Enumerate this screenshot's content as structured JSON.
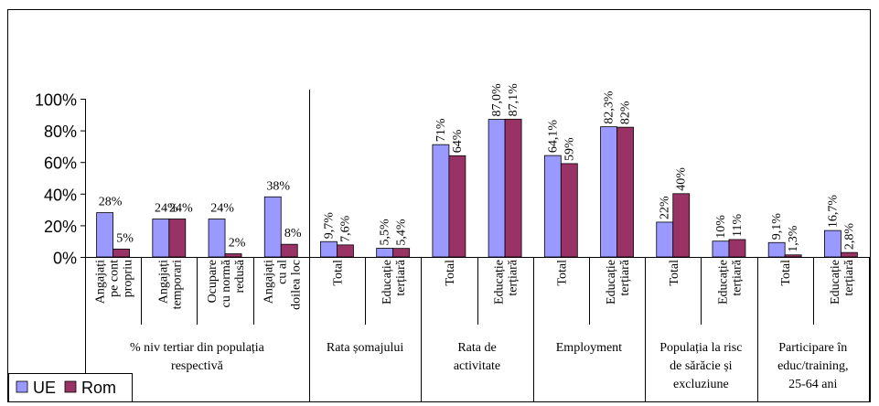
{
  "chart_data": {
    "type": "bar",
    "ylim": [
      0,
      100
    ],
    "y_ticks": [
      "0%",
      "20%",
      "40%",
      "60%",
      "80%",
      "100%"
    ],
    "y_tick_values": [
      0,
      20,
      40,
      60,
      80,
      100
    ],
    "grid": false,
    "legend_position": "bottom-left",
    "colors": {
      "UE": "#9999ff",
      "Rom": "#993366"
    },
    "series": [
      {
        "name": "UE",
        "labels": [
          "28%",
          "24%",
          "24%",
          "38%",
          "9,7%",
          "5,5%",
          "71%",
          "87,0%",
          "64,1%",
          "82,3%",
          "22%",
          "10%",
          "9,1%",
          "16,7%"
        ],
        "values": [
          28,
          24,
          24,
          38,
          9.7,
          5.5,
          71,
          87.0,
          64.1,
          82.3,
          22,
          10,
          9.1,
          16.7
        ]
      },
      {
        "name": "Rom",
        "labels": [
          "5%",
          "24%",
          "2%",
          "8%",
          "7,6%",
          "5,4%",
          "64%",
          "87,1%",
          "59%",
          "82%",
          "40%",
          "11%",
          "1,3%",
          "2,8%"
        ],
        "values": [
          5,
          24,
          2,
          8,
          7.6,
          5.4,
          64,
          87.1,
          59,
          82,
          40,
          11,
          1.3,
          2.8
        ]
      }
    ],
    "categories": [
      [
        "Angajați",
        "pe cont",
        "propriu"
      ],
      [
        "Angajați",
        "temporari"
      ],
      [
        "Ocupare",
        "cu normă",
        "redusă"
      ],
      [
        "Angajați",
        "cu al",
        "doilea loc"
      ],
      [
        "Total"
      ],
      [
        "Educație",
        "terțiară"
      ],
      [
        "Total"
      ],
      [
        "Educație",
        "terțiară"
      ],
      [
        "Total"
      ],
      [
        "Educație",
        "terțiară"
      ],
      [
        "Total"
      ],
      [
        "Educație",
        "terțiară"
      ],
      [
        "Total"
      ],
      [
        "Educație",
        "terțiară"
      ]
    ],
    "groups": [
      {
        "label": [
          "% niv tertiar din populația",
          "respectivă"
        ],
        "count": 4
      },
      {
        "label": [
          "Rata șomajului"
        ],
        "count": 2
      },
      {
        "label": [
          "Rata de",
          "activitate"
        ],
        "count": 2
      },
      {
        "label": [
          "Employment"
        ],
        "count": 2
      },
      {
        "label": [
          "Populația la risc",
          "de sărăcie și",
          "excluziune"
        ],
        "count": 2
      },
      {
        "label": [
          "Participare în",
          "educ/training,",
          "25-64 ani"
        ],
        "count": 2
      }
    ]
  }
}
